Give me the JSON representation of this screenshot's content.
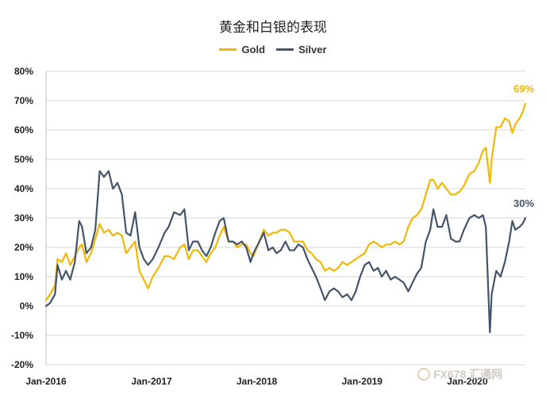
{
  "chart_data": {
    "type": "line",
    "title": "黄金和白银的表现",
    "xlabel": "",
    "ylabel": "",
    "ylim": [
      -20,
      80
    ],
    "yticks": [
      "80%",
      "70%",
      "60%",
      "50%",
      "40%",
      "30%",
      "20%",
      "10%",
      "0%",
      "-10%",
      "-20%"
    ],
    "yticks_values": [
      80,
      70,
      60,
      50,
      40,
      30,
      20,
      10,
      0,
      -10,
      -20
    ],
    "xlim": [
      "2016-01-01",
      "2020-07-20"
    ],
    "xticks": [
      "Jan-2016",
      "Jan-2017",
      "Jan-2018",
      "Jan-2019",
      "Jan-2020"
    ],
    "xticks_dates": [
      "2016-01-01",
      "2017-01-01",
      "2018-01-01",
      "2019-01-01",
      "2020-01-01"
    ],
    "grid": "horizontal",
    "legend": "top",
    "series": [
      {
        "name": "Gold",
        "color": "#f2b705",
        "end_label": "69%",
        "points": [
          [
            "2016-01-01",
            2
          ],
          [
            "2016-01-15",
            4
          ],
          [
            "2016-02-01",
            7
          ],
          [
            "2016-02-10",
            16
          ],
          [
            "2016-02-25",
            15
          ],
          [
            "2016-03-10",
            18
          ],
          [
            "2016-03-25",
            14
          ],
          [
            "2016-04-10",
            17
          ],
          [
            "2016-04-25",
            20
          ],
          [
            "2016-05-05",
            21
          ],
          [
            "2016-05-20",
            15
          ],
          [
            "2016-06-05",
            18
          ],
          [
            "2016-06-20",
            23
          ],
          [
            "2016-07-05",
            28
          ],
          [
            "2016-07-20",
            25
          ],
          [
            "2016-08-05",
            26
          ],
          [
            "2016-08-20",
            24
          ],
          [
            "2016-09-05",
            25
          ],
          [
            "2016-09-20",
            24
          ],
          [
            "2016-10-05",
            18
          ],
          [
            "2016-10-20",
            20
          ],
          [
            "2016-11-05",
            22
          ],
          [
            "2016-11-20",
            12
          ],
          [
            "2016-12-05",
            9
          ],
          [
            "2016-12-20",
            6
          ],
          [
            "2017-01-05",
            10
          ],
          [
            "2017-01-25",
            13
          ],
          [
            "2017-02-15",
            17
          ],
          [
            "2017-03-01",
            17
          ],
          [
            "2017-03-20",
            16
          ],
          [
            "2017-04-10",
            20
          ],
          [
            "2017-04-25",
            21
          ],
          [
            "2017-05-10",
            16
          ],
          [
            "2017-05-25",
            19
          ],
          [
            "2017-06-10",
            19
          ],
          [
            "2017-06-25",
            17
          ],
          [
            "2017-07-10",
            15
          ],
          [
            "2017-07-25",
            18
          ],
          [
            "2017-08-10",
            20
          ],
          [
            "2017-08-25",
            24
          ],
          [
            "2017-09-08",
            27
          ],
          [
            "2017-09-25",
            22
          ],
          [
            "2017-10-10",
            22
          ],
          [
            "2017-10-25",
            20
          ],
          [
            "2017-11-10",
            21
          ],
          [
            "2017-11-25",
            21
          ],
          [
            "2017-12-10",
            18
          ],
          [
            "2017-12-20",
            17
          ],
          [
            "2018-01-05",
            21
          ],
          [
            "2018-01-25",
            26
          ],
          [
            "2018-02-10",
            24
          ],
          [
            "2018-02-25",
            25
          ],
          [
            "2018-03-10",
            25
          ],
          [
            "2018-03-25",
            26
          ],
          [
            "2018-04-10",
            26
          ],
          [
            "2018-04-25",
            25
          ],
          [
            "2018-05-10",
            22
          ],
          [
            "2018-05-25",
            22
          ],
          [
            "2018-06-10",
            22
          ],
          [
            "2018-06-25",
            19
          ],
          [
            "2018-07-10",
            18
          ],
          [
            "2018-07-25",
            16
          ],
          [
            "2018-08-10",
            15
          ],
          [
            "2018-08-25",
            12
          ],
          [
            "2018-09-10",
            13
          ],
          [
            "2018-09-25",
            12
          ],
          [
            "2018-10-10",
            13
          ],
          [
            "2018-10-25",
            15
          ],
          [
            "2018-11-10",
            14
          ],
          [
            "2018-11-25",
            15
          ],
          [
            "2018-12-10",
            16
          ],
          [
            "2018-12-25",
            17
          ],
          [
            "2019-01-10",
            18
          ],
          [
            "2019-01-25",
            21
          ],
          [
            "2019-02-10",
            22
          ],
          [
            "2019-02-25",
            21
          ],
          [
            "2019-03-10",
            20
          ],
          [
            "2019-03-25",
            21
          ],
          [
            "2019-04-10",
            21
          ],
          [
            "2019-04-25",
            22
          ],
          [
            "2019-05-10",
            21
          ],
          [
            "2019-05-25",
            22
          ],
          [
            "2019-06-10",
            27
          ],
          [
            "2019-06-25",
            30
          ],
          [
            "2019-07-10",
            31
          ],
          [
            "2019-07-25",
            33
          ],
          [
            "2019-08-10",
            38
          ],
          [
            "2019-08-25",
            43
          ],
          [
            "2019-09-05",
            43
          ],
          [
            "2019-09-20",
            40
          ],
          [
            "2019-10-05",
            42
          ],
          [
            "2019-10-20",
            40
          ],
          [
            "2019-11-05",
            38
          ],
          [
            "2019-11-20",
            38
          ],
          [
            "2019-12-05",
            39
          ],
          [
            "2019-12-20",
            41
          ],
          [
            "2020-01-08",
            45
          ],
          [
            "2020-01-25",
            46
          ],
          [
            "2020-02-10",
            49
          ],
          [
            "2020-02-24",
            53
          ],
          [
            "2020-03-05",
            54
          ],
          [
            "2020-03-19",
            42
          ],
          [
            "2020-03-25",
            50
          ],
          [
            "2020-04-10",
            61
          ],
          [
            "2020-04-25",
            61
          ],
          [
            "2020-05-10",
            64
          ],
          [
            "2020-05-25",
            63
          ],
          [
            "2020-06-05",
            59
          ],
          [
            "2020-06-15",
            62
          ],
          [
            "2020-06-30",
            64
          ],
          [
            "2020-07-10",
            66
          ],
          [
            "2020-07-20",
            69
          ]
        ]
      },
      {
        "name": "Silver",
        "color": "#44546a",
        "end_label": "30%",
        "points": [
          [
            "2016-01-01",
            0
          ],
          [
            "2016-01-15",
            1
          ],
          [
            "2016-02-01",
            4
          ],
          [
            "2016-02-10",
            14
          ],
          [
            "2016-02-25",
            9
          ],
          [
            "2016-03-10",
            12
          ],
          [
            "2016-03-25",
            9
          ],
          [
            "2016-04-10",
            15
          ],
          [
            "2016-04-25",
            29
          ],
          [
            "2016-05-05",
            27
          ],
          [
            "2016-05-20",
            18
          ],
          [
            "2016-06-05",
            20
          ],
          [
            "2016-06-20",
            26
          ],
          [
            "2016-07-05",
            46
          ],
          [
            "2016-07-20",
            44
          ],
          [
            "2016-08-05",
            46
          ],
          [
            "2016-08-20",
            40
          ],
          [
            "2016-09-05",
            42
          ],
          [
            "2016-09-20",
            38
          ],
          [
            "2016-10-05",
            25
          ],
          [
            "2016-10-20",
            24
          ],
          [
            "2016-11-05",
            32
          ],
          [
            "2016-11-20",
            20
          ],
          [
            "2016-12-05",
            16
          ],
          [
            "2016-12-20",
            14
          ],
          [
            "2017-01-05",
            16
          ],
          [
            "2017-01-25",
            20
          ],
          [
            "2017-02-15",
            25
          ],
          [
            "2017-03-01",
            27
          ],
          [
            "2017-03-20",
            32
          ],
          [
            "2017-04-10",
            31
          ],
          [
            "2017-04-25",
            33
          ],
          [
            "2017-05-10",
            19
          ],
          [
            "2017-05-25",
            22
          ],
          [
            "2017-06-10",
            22
          ],
          [
            "2017-06-25",
            19
          ],
          [
            "2017-07-10",
            17
          ],
          [
            "2017-07-25",
            20
          ],
          [
            "2017-08-10",
            25
          ],
          [
            "2017-08-25",
            29
          ],
          [
            "2017-09-08",
            30
          ],
          [
            "2017-09-25",
            22
          ],
          [
            "2017-10-10",
            22
          ],
          [
            "2017-10-25",
            21
          ],
          [
            "2017-11-10",
            22
          ],
          [
            "2017-11-25",
            20
          ],
          [
            "2017-12-10",
            15
          ],
          [
            "2017-12-20",
            18
          ],
          [
            "2018-01-05",
            21
          ],
          [
            "2018-01-25",
            25
          ],
          [
            "2018-02-10",
            19
          ],
          [
            "2018-02-25",
            20
          ],
          [
            "2018-03-10",
            18
          ],
          [
            "2018-03-25",
            19
          ],
          [
            "2018-04-10",
            22
          ],
          [
            "2018-04-25",
            19
          ],
          [
            "2018-05-10",
            19
          ],
          [
            "2018-05-25",
            21
          ],
          [
            "2018-06-10",
            20
          ],
          [
            "2018-06-25",
            16
          ],
          [
            "2018-07-10",
            13
          ],
          [
            "2018-07-25",
            10
          ],
          [
            "2018-08-10",
            6
          ],
          [
            "2018-08-25",
            2
          ],
          [
            "2018-09-10",
            5
          ],
          [
            "2018-09-25",
            6
          ],
          [
            "2018-10-10",
            5
          ],
          [
            "2018-10-25",
            3
          ],
          [
            "2018-11-10",
            4
          ],
          [
            "2018-11-25",
            2
          ],
          [
            "2018-12-10",
            5
          ],
          [
            "2018-12-25",
            10
          ],
          [
            "2019-01-10",
            14
          ],
          [
            "2019-01-25",
            15
          ],
          [
            "2019-02-10",
            12
          ],
          [
            "2019-02-25",
            13
          ],
          [
            "2019-03-10",
            10
          ],
          [
            "2019-03-25",
            12
          ],
          [
            "2019-04-10",
            9
          ],
          [
            "2019-04-25",
            10
          ],
          [
            "2019-05-10",
            9
          ],
          [
            "2019-05-25",
            8
          ],
          [
            "2019-06-10",
            5
          ],
          [
            "2019-06-25",
            8
          ],
          [
            "2019-07-10",
            11
          ],
          [
            "2019-07-25",
            13
          ],
          [
            "2019-08-10",
            22
          ],
          [
            "2019-08-25",
            26
          ],
          [
            "2019-09-05",
            33
          ],
          [
            "2019-09-20",
            27
          ],
          [
            "2019-10-05",
            27
          ],
          [
            "2019-10-20",
            31
          ],
          [
            "2019-11-05",
            23
          ],
          [
            "2019-11-20",
            22
          ],
          [
            "2019-12-05",
            22
          ],
          [
            "2019-12-20",
            26
          ],
          [
            "2020-01-08",
            30
          ],
          [
            "2020-01-25",
            31
          ],
          [
            "2020-02-10",
            30
          ],
          [
            "2020-02-24",
            31
          ],
          [
            "2020-03-05",
            27
          ],
          [
            "2020-03-19",
            -9
          ],
          [
            "2020-03-25",
            4
          ],
          [
            "2020-04-10",
            12
          ],
          [
            "2020-04-25",
            10
          ],
          [
            "2020-05-10",
            15
          ],
          [
            "2020-05-25",
            22
          ],
          [
            "2020-06-05",
            29
          ],
          [
            "2020-06-15",
            26
          ],
          [
            "2020-06-30",
            27
          ],
          [
            "2020-07-10",
            28
          ],
          [
            "2020-07-20",
            30
          ]
        ]
      }
    ]
  },
  "watermark": {
    "text": "FX678 汇通网"
  }
}
